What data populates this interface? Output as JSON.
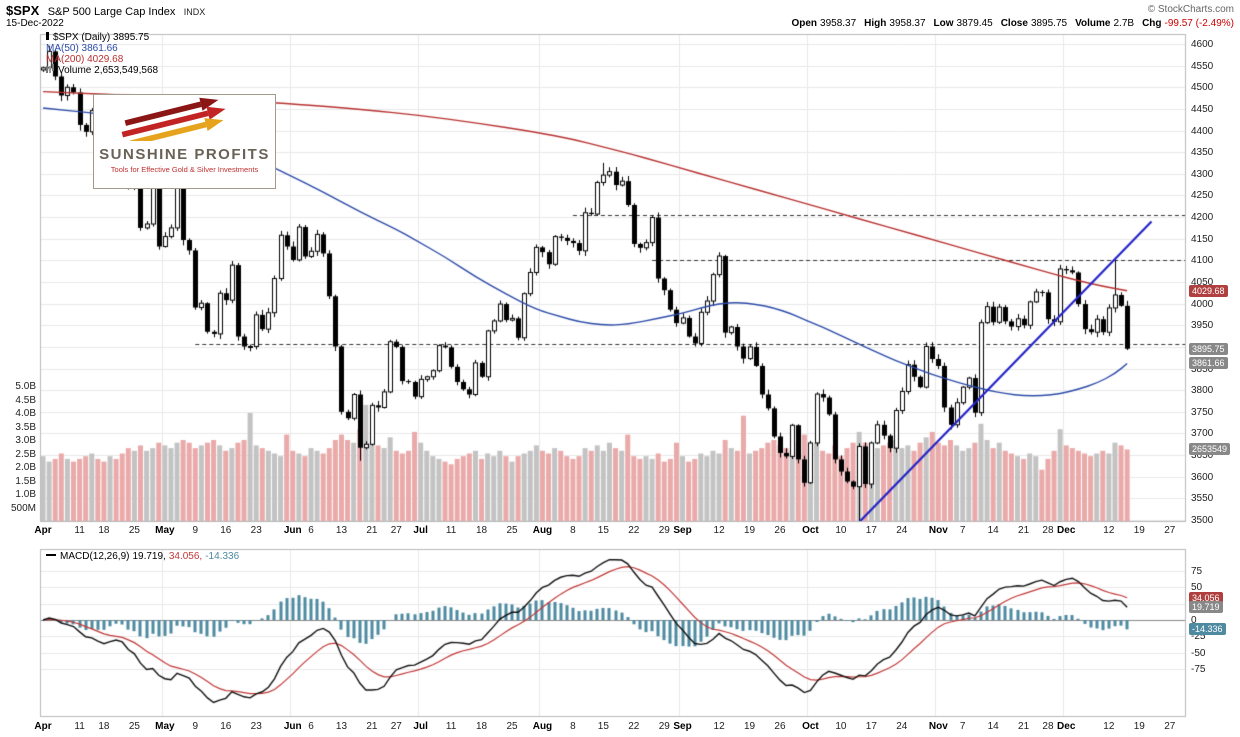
{
  "header": {
    "symbol": "$SPX",
    "name": "S&P 500 Large Cap Index",
    "exchange": "INDX",
    "copyright": "© StockCharts.com",
    "date": "15-Dec-2022",
    "quote": {
      "open_label": "Open",
      "open": "3958.37",
      "high_label": "High",
      "high": "3958.37",
      "low_label": "Low",
      "low": "3879.45",
      "close_label": "Close",
      "close": "3895.75",
      "volume_label": "Volume",
      "volume": "2.7B",
      "chg_label": "Chg",
      "chg": "-99.57 (-2.49%)"
    }
  },
  "legend": {
    "main": "$SPX (Daily) 3895.75",
    "ma50": "MA(50) 3861.66",
    "ma200": "MA(200) 4029.68",
    "volume": "Volume 2,653,549,568"
  },
  "logo": {
    "title": "SUNSHINE PROFITS",
    "subtitle": "Tools for Effective Gold & Silver Investments"
  },
  "macd": {
    "name": "MACD(12,26,9)",
    "value_macd": "19.719,",
    "value_signal": "34.056,",
    "value_hist": "-14.336"
  },
  "right_price_labels": [
    {
      "text": "4029.68",
      "price": 4029.68,
      "bg": "#b04040",
      "name": "ma200-value-label"
    },
    {
      "text": "3895.75",
      "price": 3895.75,
      "bg": "#888888",
      "name": "close-value-label"
    },
    {
      "text": "3861.66",
      "price": 3861.66,
      "bg": "#888888",
      "name": "ma50-value-label"
    },
    {
      "text": "2653549",
      "volume": 2.653,
      "bg": "#888888",
      "name": "volume-value-label"
    }
  ],
  "macd_value_labels": [
    {
      "text": "34.056",
      "value": 34.056,
      "bg": "#b04040",
      "name": "macd-signal-label"
    },
    {
      "text": "19.719",
      "value": 19.719,
      "bg": "#888888",
      "name": "macd-line-label"
    },
    {
      "text": "-14.336",
      "value": -14.336,
      "bg": "#4e8aa0",
      "name": "macd-hist-label"
    }
  ],
  "chart_data": {
    "type": "candlestick",
    "symbol": "$SPX",
    "timeframe": "daily",
    "title": "S&P 500 Large Cap Index, Apr–Dec 2022 with 50/200-day MAs, volume and MACD(12,26,9)",
    "x_range": {
      "slots": 188
    },
    "price_axis": {
      "min": 3500,
      "max": 4600,
      "step": 50
    },
    "price_tick_labels": [
      "4600",
      "4550",
      "4500",
      "4450",
      "4400",
      "4350",
      "4300",
      "4250",
      "4200",
      "4150",
      "4100",
      "4050",
      "4000",
      "3950",
      "3900",
      "3850",
      "3800",
      "3750",
      "3700",
      "3650",
      "3600",
      "3550",
      "3500"
    ],
    "volume_axis": [
      {
        "label": "5.0B",
        "v": 5.0
      },
      {
        "label": "4.5B",
        "v": 4.5
      },
      {
        "label": "4.0B",
        "v": 4.0
      },
      {
        "label": "3.5B",
        "v": 3.5
      },
      {
        "label": "3.0B",
        "v": 3.0
      },
      {
        "label": "2.5B",
        "v": 2.5
      },
      {
        "label": "2.0B",
        "v": 2.0
      },
      {
        "label": "1.5B",
        "v": 1.5
      },
      {
        "label": "1.0B",
        "v": 1.0
      },
      {
        "label": "500M",
        "v": 0.5
      }
    ],
    "macd_axis": [
      {
        "label": "75",
        "v": 75
      },
      {
        "label": "50",
        "v": 50
      },
      {
        "label": "25",
        "v": 25
      },
      {
        "label": "0",
        "v": 0
      },
      {
        "label": "-25",
        "v": -25
      },
      {
        "label": "-50",
        "v": -50
      },
      {
        "label": "-75",
        "v": -75
      }
    ],
    "xticks": [
      {
        "l": "Apr",
        "i": 0,
        "m": true
      },
      {
        "l": "11",
        "i": 6
      },
      {
        "l": "18",
        "i": 10
      },
      {
        "l": "25",
        "i": 15
      },
      {
        "l": "May",
        "i": 20,
        "m": true
      },
      {
        "l": "9",
        "i": 25
      },
      {
        "l": "16",
        "i": 30
      },
      {
        "l": "23",
        "i": 35
      },
      {
        "l": "Jun",
        "i": 41,
        "m": true
      },
      {
        "l": "6",
        "i": 44
      },
      {
        "l": "13",
        "i": 49
      },
      {
        "l": "21",
        "i": 54
      },
      {
        "l": "27",
        "i": 58
      },
      {
        "l": "Jul",
        "i": 62,
        "m": true
      },
      {
        "l": "11",
        "i": 67
      },
      {
        "l": "18",
        "i": 72
      },
      {
        "l": "25",
        "i": 77
      },
      {
        "l": "Aug",
        "i": 82,
        "m": true
      },
      {
        "l": "8",
        "i": 87
      },
      {
        "l": "15",
        "i": 92
      },
      {
        "l": "22",
        "i": 97
      },
      {
        "l": "29",
        "i": 102
      },
      {
        "l": "Sep",
        "i": 105,
        "m": true
      },
      {
        "l": "12",
        "i": 111
      },
      {
        "l": "19",
        "i": 116
      },
      {
        "l": "26",
        "i": 121
      },
      {
        "l": "Oct",
        "i": 126,
        "m": true
      },
      {
        "l": "10",
        "i": 131
      },
      {
        "l": "17",
        "i": 136
      },
      {
        "l": "24",
        "i": 141
      },
      {
        "l": "Nov",
        "i": 147,
        "m": true
      },
      {
        "l": "7",
        "i": 151
      },
      {
        "l": "14",
        "i": 156
      },
      {
        "l": "21",
        "i": 161
      },
      {
        "l": "28",
        "i": 165
      },
      {
        "l": "Dec",
        "i": 168,
        "m": true
      },
      {
        "l": "12",
        "i": 175
      },
      {
        "l": "19",
        "i": 180
      },
      {
        "l": "27",
        "i": 185
      }
    ],
    "first_open": 4540,
    "closes": [
      4545,
      4583,
      4525,
      4481,
      4500,
      4488,
      4413,
      4397,
      4446,
      4393,
      4392,
      4462,
      4459,
      4393,
      4272,
      4296,
      4175,
      4184,
      4287,
      4132,
      4155,
      4175,
      4300,
      4147,
      4123,
      3991,
      4001,
      3935,
      3930,
      4024,
      4008,
      4089,
      3924,
      3901,
      3901,
      3974,
      3941,
      3979,
      4058,
      4158,
      4132,
      4101,
      4177,
      4109,
      4121,
      4160,
      4116,
      4017,
      3901,
      3750,
      3735,
      3790,
      3667,
      3675,
      3765,
      3760,
      3796,
      3912,
      3900,
      3821,
      3819,
      3785,
      3825,
      3831,
      3845,
      3903,
      3899,
      3854,
      3819,
      3802,
      3790,
      3863,
      3831,
      3937,
      3960,
      3999,
      3962,
      3966,
      3921,
      4023,
      4072,
      4130,
      4119,
      4091,
      4155,
      4152,
      4145,
      4140,
      4122,
      4210,
      4207,
      4280,
      4297,
      4305,
      4274,
      4283,
      4228,
      4138,
      4129,
      4141,
      4199,
      4058,
      4031,
      3986,
      3955,
      3967,
      3924,
      3908,
      3980,
      4006,
      4067,
      4110,
      3933,
      3946,
      3901,
      3873,
      3900,
      3856,
      3790,
      3758,
      3693,
      3655,
      3647,
      3719,
      3640,
      3586,
      3678,
      3791,
      3783,
      3744,
      3640,
      3612,
      3589,
      3577,
      3670,
      3583,
      3678,
      3720,
      3695,
      3666,
      3753,
      3797,
      3859,
      3831,
      3807,
      3901,
      3872,
      3856,
      3760,
      3720,
      3771,
      3807,
      3828,
      3748,
      3956,
      3993,
      3957,
      3992,
      3959,
      3947,
      3965,
      3950,
      4004,
      4027,
      4026,
      3964,
      3958,
      4080,
      4077,
      4072,
      3999,
      3941,
      3934,
      3964,
      3934,
      3990,
      4020,
      3995,
      3895.75
    ],
    "volumes_B": [
      2.4,
      2.2,
      2.3,
      2.5,
      2.3,
      2.2,
      2.3,
      2.4,
      2.5,
      2.3,
      2.2,
      2.4,
      2.3,
      2.5,
      2.7,
      2.6,
      2.8,
      2.6,
      2.7,
      2.9,
      2.8,
      2.7,
      2.9,
      3.0,
      2.9,
      2.7,
      2.8,
      2.9,
      3.0,
      2.8,
      2.6,
      2.7,
      2.9,
      3.0,
      4.0,
      2.8,
      2.7,
      2.6,
      2.5,
      2.4,
      3.2,
      2.6,
      2.5,
      2.4,
      2.7,
      2.6,
      2.5,
      2.7,
      3.0,
      3.2,
      3.0,
      2.9,
      3.4,
      4.3,
      2.9,
      2.8,
      2.7,
      3.1,
      2.6,
      2.5,
      2.6,
      3.3,
      2.9,
      2.6,
      2.4,
      2.3,
      2.2,
      2.1,
      2.3,
      2.4,
      2.5,
      2.6,
      2.3,
      2.5,
      2.4,
      2.6,
      2.4,
      2.2,
      2.4,
      2.5,
      2.6,
      2.8,
      2.6,
      2.5,
      2.7,
      2.6,
      2.4,
      2.3,
      2.4,
      2.7,
      2.6,
      2.8,
      2.6,
      2.9,
      2.7,
      2.6,
      3.2,
      2.4,
      2.3,
      2.4,
      2.3,
      2.5,
      2.2,
      2.3,
      2.9,
      2.4,
      2.2,
      2.3,
      2.5,
      2.4,
      2.6,
      2.5,
      3.0,
      2.7,
      2.6,
      3.9,
      2.5,
      2.6,
      2.7,
      2.9,
      3.0,
      2.8,
      2.7,
      2.6,
      2.9,
      3.2,
      2.8,
      2.9,
      2.6,
      2.5,
      2.8,
      2.4,
      2.7,
      2.9,
      3.3,
      2.9,
      2.6,
      2.7,
      2.8,
      2.9,
      3.0,
      2.7,
      2.8,
      2.6,
      2.9,
      3.1,
      3.3,
      2.9,
      2.8,
      3.0,
      2.8,
      2.6,
      2.7,
      2.9,
      3.6,
      3.0,
      2.7,
      2.9,
      2.6,
      2.5,
      2.4,
      2.3,
      2.5,
      2.4,
      1.9,
      2.3,
      2.6,
      3.4,
      2.8,
      2.7,
      2.6,
      2.5,
      2.4,
      2.5,
      2.6,
      2.5,
      2.9,
      2.8,
      2.65
    ],
    "high_overrides": {
      "92": 4325.28,
      "176": 4100.96
    },
    "low_overrides": {
      "52": 3636.87,
      "134": 3491.58
    },
    "ma50_anchors": [
      [
        0,
        4452
      ],
      [
        10,
        4438
      ],
      [
        19,
        4416
      ],
      [
        30,
        4368
      ],
      [
        40,
        4300
      ],
      [
        46,
        4258
      ],
      [
        52,
        4212
      ],
      [
        58,
        4172
      ],
      [
        61,
        4148
      ],
      [
        66,
        4108
      ],
      [
        71,
        4062
      ],
      [
        76,
        4022
      ],
      [
        81,
        3986
      ],
      [
        85,
        3970
      ],
      [
        88,
        3958
      ],
      [
        92,
        3950
      ],
      [
        96,
        3952
      ],
      [
        101,
        3966
      ],
      [
        105,
        3978
      ],
      [
        108,
        3990
      ],
      [
        111,
        4000
      ],
      [
        114,
        4003
      ],
      [
        117,
        3999
      ],
      [
        120,
        3990
      ],
      [
        123,
        3976
      ],
      [
        125,
        3963
      ],
      [
        128,
        3946
      ],
      [
        131,
        3926
      ],
      [
        134,
        3906
      ],
      [
        137,
        3887
      ],
      [
        140,
        3868
      ],
      [
        143,
        3852
      ],
      [
        146,
        3836
      ],
      [
        149,
        3823
      ],
      [
        152,
        3811
      ],
      [
        155,
        3800
      ],
      [
        158,
        3792
      ],
      [
        161,
        3787
      ],
      [
        164,
        3787
      ],
      [
        167,
        3792
      ],
      [
        170,
        3802
      ],
      [
        173,
        3816
      ],
      [
        176,
        3838
      ],
      [
        178,
        3861.7
      ]
    ],
    "ma200_anchors": [
      [
        0,
        4490
      ],
      [
        20,
        4478
      ],
      [
        41,
        4462
      ],
      [
        53,
        4448
      ],
      [
        62,
        4435
      ],
      [
        71,
        4418
      ],
      [
        81,
        4396
      ],
      [
        87,
        4380
      ],
      [
        92,
        4362
      ],
      [
        97,
        4344
      ],
      [
        101,
        4328
      ],
      [
        105,
        4312
      ],
      [
        110,
        4292
      ],
      [
        115,
        4272
      ],
      [
        120,
        4252
      ],
      [
        125,
        4232
      ],
      [
        131,
        4208
      ],
      [
        136,
        4188
      ],
      [
        141,
        4168
      ],
      [
        146,
        4148
      ],
      [
        151,
        4128
      ],
      [
        156,
        4108
      ],
      [
        161,
        4088
      ],
      [
        166,
        4068
      ],
      [
        170,
        4053
      ],
      [
        174,
        4040
      ],
      [
        178,
        4029.7
      ]
    ],
    "trendline": [
      [
        134,
        3495
      ],
      [
        182,
        4190
      ]
    ],
    "dashed_levels": [
      {
        "price": 4205,
        "from": 87
      },
      {
        "price": 4101,
        "from": 100
      },
      {
        "price": 3906,
        "from": 25
      }
    ],
    "macd_params": [
      12,
      26,
      9
    ],
    "colors": {
      "grid": "#e9e9e9",
      "frame": "#b8b8b8",
      "dashed": "#333333",
      "vol_up": "#c3c3c3",
      "vol_down": "#eaaaaa",
      "ma50": "#2b4aa8",
      "ma200": "#b83030",
      "trendline": "#2424c8",
      "macd_line": "#111111",
      "signal_line": "#c23838",
      "hist": "#4e8aa0",
      "zero_line": "#888888"
    }
  }
}
